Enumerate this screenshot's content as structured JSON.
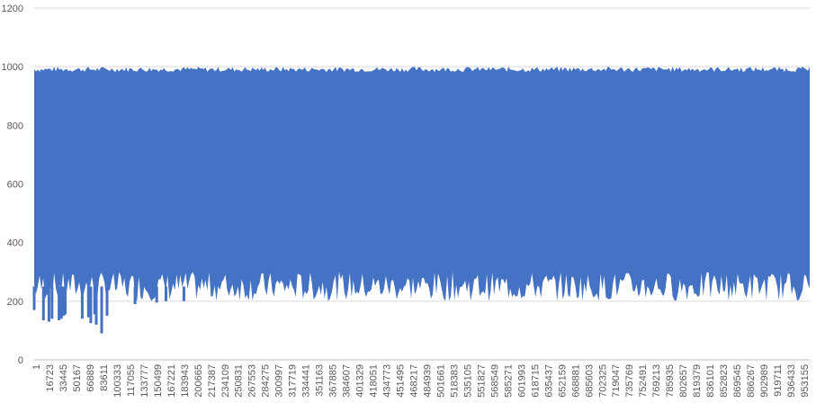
{
  "chart_data": {
    "type": "area",
    "title": "",
    "xlabel": "",
    "ylabel": "",
    "ylim": [
      0,
      1200
    ],
    "y_ticks": [
      "0",
      "200",
      "400",
      "600",
      "800",
      "1000",
      "1200"
    ],
    "grid": "horizontal",
    "legend": "none",
    "series_color": "#4472C4",
    "x_range": [
      1,
      1000000
    ],
    "x_tick_labels": [
      "1",
      "16723",
      "33445",
      "50167",
      "66889",
      "83611",
      "100333",
      "117055",
      "133777",
      "150499",
      "167221",
      "183943",
      "200665",
      "217387",
      "234109",
      "250831",
      "267553",
      "284275",
      "300997",
      "317719",
      "334441",
      "351163",
      "367885",
      "384607",
      "401329",
      "418051",
      "434773",
      "451495",
      "468217",
      "484939",
      "501661",
      "518383",
      "535105",
      "551827",
      "568549",
      "585271",
      "601993",
      "618715",
      "635437",
      "652159",
      "668881",
      "685603",
      "702325",
      "719047",
      "735769",
      "752491",
      "769213",
      "785935",
      "802657",
      "819379",
      "836101",
      "852823",
      "869545",
      "886267",
      "902989",
      "919711",
      "936433",
      "953155"
    ],
    "series": [
      {
        "upper_typical": 990,
        "upper_range": [
          960,
          1000
        ],
        "lower_typical": 250,
        "lower_range": [
          200,
          300
        ],
        "lower_outliers": [
          {
            "x": 1,
            "y": 170
          },
          {
            "x": 12000,
            "y": 135
          },
          {
            "x": 19000,
            "y": 130
          },
          {
            "x": 23000,
            "y": 140
          },
          {
            "x": 32000,
            "y": 135
          },
          {
            "x": 35000,
            "y": 140
          },
          {
            "x": 38000,
            "y": 150
          },
          {
            "x": 40000,
            "y": 155
          },
          {
            "x": 62000,
            "y": 140
          },
          {
            "x": 70000,
            "y": 145
          },
          {
            "x": 73000,
            "y": 125
          },
          {
            "x": 78000,
            "y": 155
          },
          {
            "x": 80000,
            "y": 120
          },
          {
            "x": 87000,
            "y": 90
          },
          {
            "x": 94000,
            "y": 150
          },
          {
            "x": 130000,
            "y": 190
          },
          {
            "x": 158000,
            "y": 195
          },
          {
            "x": 170000,
            "y": 200
          },
          {
            "x": 193000,
            "y": 200
          }
        ]
      }
    ]
  }
}
